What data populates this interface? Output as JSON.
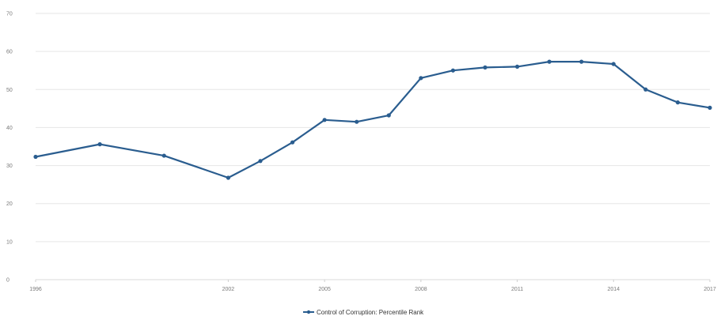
{
  "chart_data": {
    "type": "line",
    "x": [
      1996,
      1998,
      2000,
      2002,
      2003,
      2004,
      2005,
      2006,
      2007,
      2008,
      2009,
      2010,
      2011,
      2012,
      2013,
      2014,
      2015,
      2016,
      2017
    ],
    "x_tick_labels": [
      "1996",
      "2002",
      "2005",
      "2008",
      "2011",
      "2014",
      "2017"
    ],
    "x_tick_values": [
      1996,
      2002,
      2005,
      2008,
      2011,
      2014,
      2017
    ],
    "ylim": [
      0,
      70
    ],
    "y_ticks": [
      0,
      10,
      20,
      30,
      40,
      50,
      60,
      70
    ],
    "grid": true,
    "legend_position": "bottom-center",
    "series": [
      {
        "name": "Control of Corruption: Percentile Rank",
        "color": "#2a5d8f",
        "values": [
          32.3,
          35.6,
          32.6,
          26.8,
          31.2,
          36.1,
          42.0,
          41.5,
          43.2,
          53.0,
          55.0,
          55.8,
          56.0,
          57.3,
          57.3,
          56.7,
          50.0,
          46.6,
          45.2
        ]
      }
    ]
  }
}
